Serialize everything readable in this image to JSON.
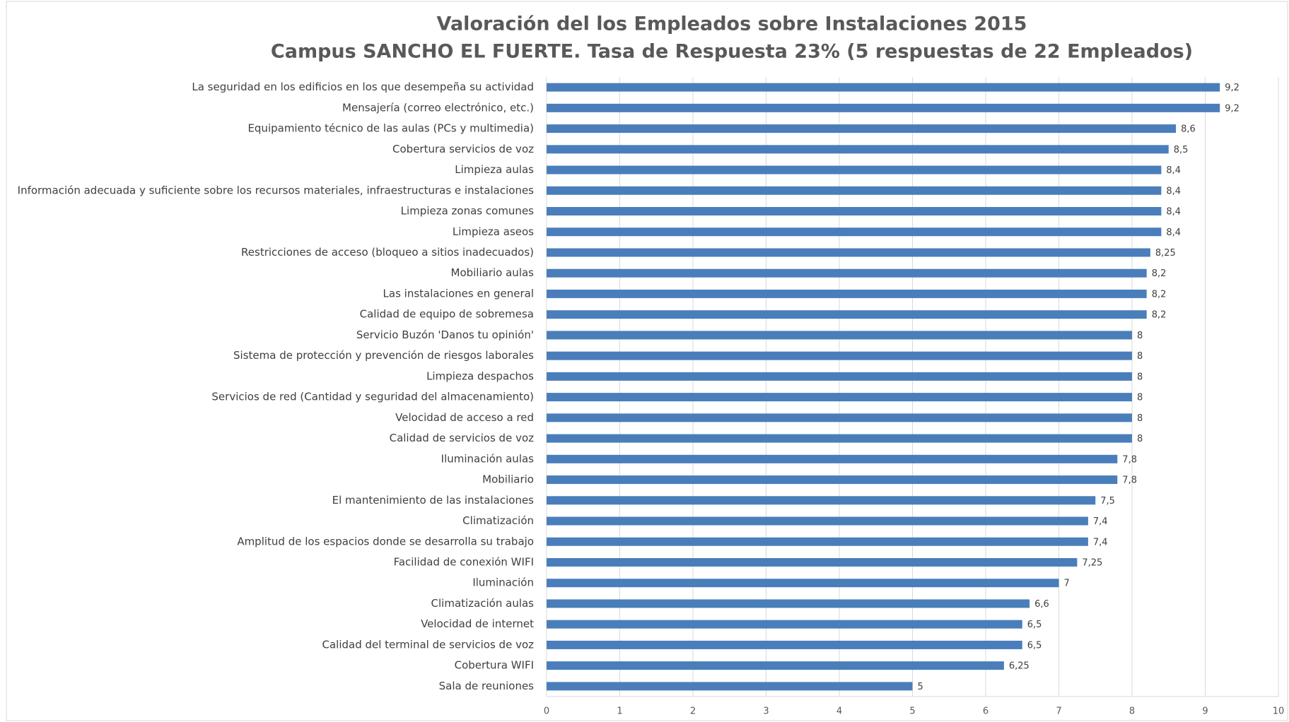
{
  "chart_data": {
    "type": "barh",
    "title": "Valoración del los Empleados sobre Instalaciones 2015",
    "subtitle": "Campus SANCHO EL FUERTE. Tasa de Respuesta 23% (5 respuestas de 22 Empleados)",
    "categories": [
      "La seguridad en los edificios en los que desempeña su actividad",
      "Mensajería (correo electrónico, etc.)",
      "Equipamiento técnico de las aulas (PCs y multimedia)",
      "Cobertura servicios de voz",
      "Limpieza aulas",
      "Información adecuada y suficiente sobre los recursos materiales, infraestructuras e instalaciones",
      "Limpieza zonas comunes",
      "Limpieza aseos",
      "Restricciones de acceso (bloqueo a sitios inadecuados)",
      "Mobiliario aulas",
      "Las instalaciones en general",
      "Calidad de equipo de sobremesa",
      "Servicio Buzón 'Danos tu opinión'",
      "Sistema de protección y prevención de riesgos laborales",
      "Limpieza despachos",
      "Servicios de red (Cantidad y seguridad del almacenamiento)",
      "Velocidad de acceso a red",
      "Calidad de servicios de voz",
      "Iluminación aulas",
      "Mobiliario",
      "El mantenimiento de las instalaciones",
      "Climatización",
      "Amplitud de los espacios donde se desarrolla su trabajo",
      "Facilidad de conexión WIFI",
      "Iluminación",
      "Climatización aulas",
      "Velocidad de internet",
      "Calidad del terminal de servicios de voz",
      "Cobertura WIFI",
      "Sala de reuniones"
    ],
    "values": [
      9.2,
      9.2,
      8.6,
      8.5,
      8.4,
      8.4,
      8.4,
      8.4,
      8.25,
      8.2,
      8.2,
      8.2,
      8,
      8,
      8,
      8,
      8,
      8,
      7.8,
      7.8,
      7.5,
      7.4,
      7.4,
      7.25,
      7,
      6.6,
      6.5,
      6.5,
      6.25,
      5
    ],
    "value_labels": [
      "9,2",
      "9,2",
      "8,6",
      "8,5",
      "8,4",
      "8,4",
      "8,4",
      "8,4",
      "8,25",
      "8,2",
      "8,2",
      "8,2",
      "8",
      "8",
      "8",
      "8",
      "8",
      "8",
      "7,8",
      "7,8",
      "7,5",
      "7,4",
      "7,4",
      "7,25",
      "7",
      "6,6",
      "6,5",
      "6,5",
      "6,25",
      "5"
    ],
    "color": "#4a7ebb",
    "xlim": [
      0,
      10
    ],
    "xticks": [
      0,
      1,
      2,
      3,
      4,
      5,
      6,
      7,
      8,
      9,
      10
    ],
    "grid": true
  }
}
